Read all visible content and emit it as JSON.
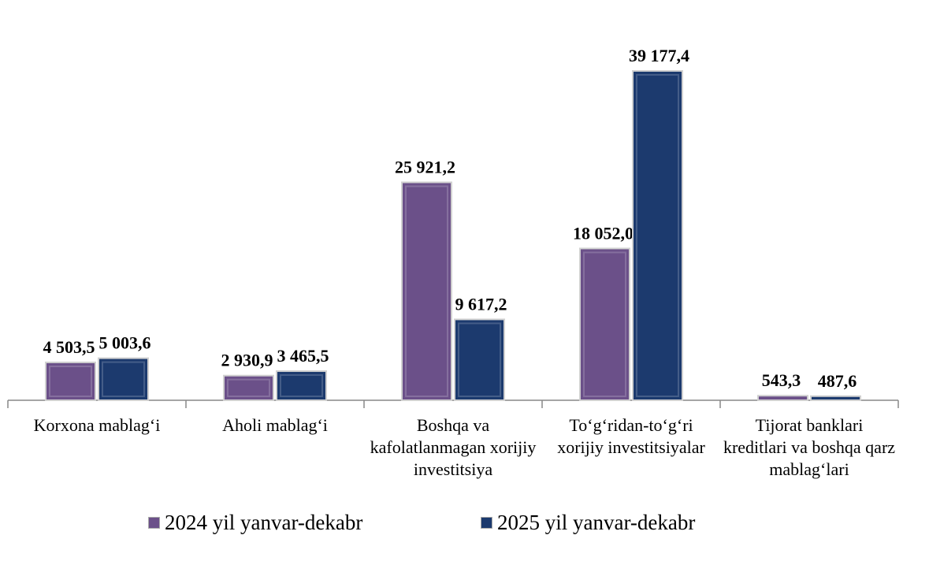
{
  "chart_data": {
    "type": "bar",
    "categories": [
      "Korxona mablag‘i",
      "Aholi mablag‘i",
      "Boshqa va kafolatlanmagan xorijiy investitsiya",
      "To‘g‘ridan-to‘g‘ri xorijiy investitsiyalar",
      "Tijorat banklari kreditlari va boshqa qarz mablag‘lari"
    ],
    "series": [
      {
        "name": "2024 yil yanvar-dekabr",
        "color": "#6b5089",
        "values": [
          4503.5,
          2930.9,
          25921.2,
          18052.0,
          543.3
        ],
        "value_labels": [
          "4 503,5",
          "2 930,9",
          "25 921,2",
          "18 052,0",
          "543,3"
        ]
      },
      {
        "name": "2025 yil yanvar-dekabr",
        "color": "#1c3a6e",
        "values": [
          5003.6,
          3465.5,
          9617.2,
          39177.4,
          487.6
        ],
        "value_labels": [
          "5 003,6",
          "3 465,5",
          "9 617,2",
          "39 177,4",
          "487,6"
        ]
      }
    ],
    "legend": "bottom"
  }
}
